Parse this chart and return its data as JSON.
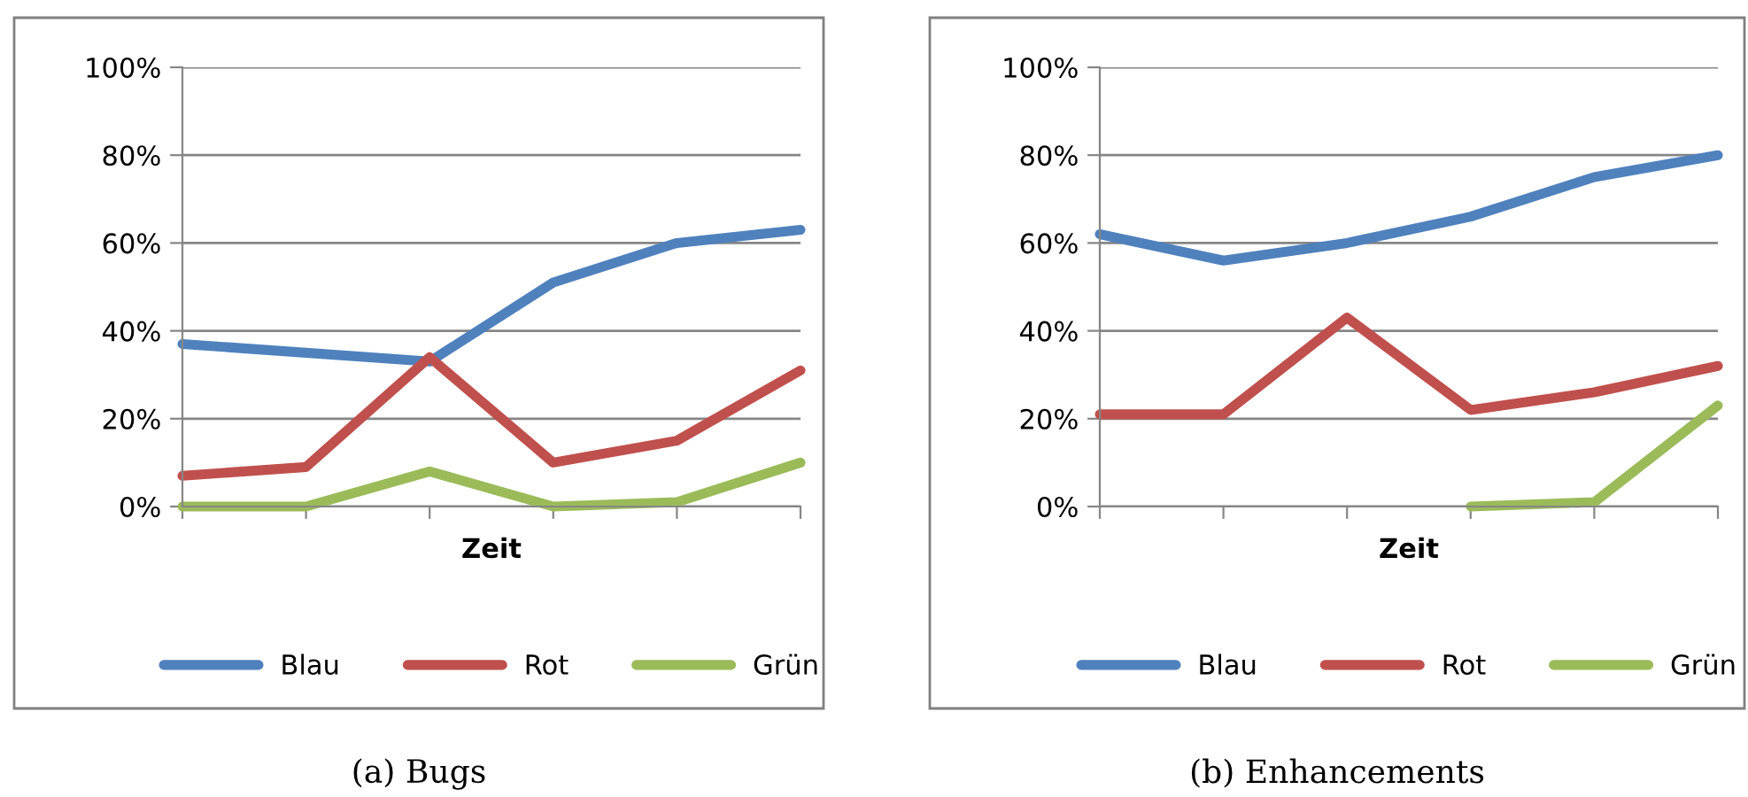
{
  "chart_data": [
    {
      "type": "line",
      "title": "(a) Bugs",
      "xlabel": "Zeit",
      "categories": [
        null,
        null,
        null,
        null,
        null,
        null
      ],
      "ylim": [
        0,
        100
      ],
      "yticks": [
        {
          "value": 0,
          "label": "0%"
        },
        {
          "value": 20,
          "label": "20%"
        },
        {
          "value": 40,
          "label": "40%"
        },
        {
          "value": 60,
          "label": "60%"
        },
        {
          "value": 80,
          "label": "80%"
        },
        {
          "value": 100,
          "label": "100%"
        }
      ],
      "grid": "y",
      "legend": "bottom",
      "marker": "none",
      "series": [
        {
          "name": "Blau",
          "color": "#4f81bd",
          "values": [
            37,
            35,
            33,
            51,
            60,
            63
          ]
        },
        {
          "name": "Rot",
          "color": "#c0504d",
          "values": [
            7,
            9,
            34,
            10,
            15,
            31
          ]
        },
        {
          "name": "Grün",
          "color": "#9bbb59",
          "values": [
            0,
            0,
            8,
            0,
            1,
            10
          ]
        }
      ]
    },
    {
      "type": "line",
      "title": "(b) Enhancements",
      "xlabel": "Zeit",
      "categories": [
        null,
        null,
        null,
        null,
        null,
        null
      ],
      "ylim": [
        0,
        100
      ],
      "yticks": [
        {
          "value": 0,
          "label": "0%"
        },
        {
          "value": 20,
          "label": "20%"
        },
        {
          "value": 40,
          "label": "40%"
        },
        {
          "value": 60,
          "label": "60%"
        },
        {
          "value": 80,
          "label": "80%"
        },
        {
          "value": 100,
          "label": "100%"
        }
      ],
      "grid": "y",
      "legend": "bottom",
      "marker": "none",
      "series": [
        {
          "name": "Blau",
          "color": "#4f81bd",
          "values": [
            62,
            56,
            60,
            66,
            75,
            80
          ]
        },
        {
          "name": "Rot",
          "color": "#c0504d",
          "values": [
            21,
            21,
            43,
            22,
            26,
            32
          ]
        },
        {
          "name": "Grün",
          "color": "#9bbb59",
          "values": [
            null,
            null,
            null,
            0,
            1,
            23
          ]
        }
      ]
    }
  ]
}
